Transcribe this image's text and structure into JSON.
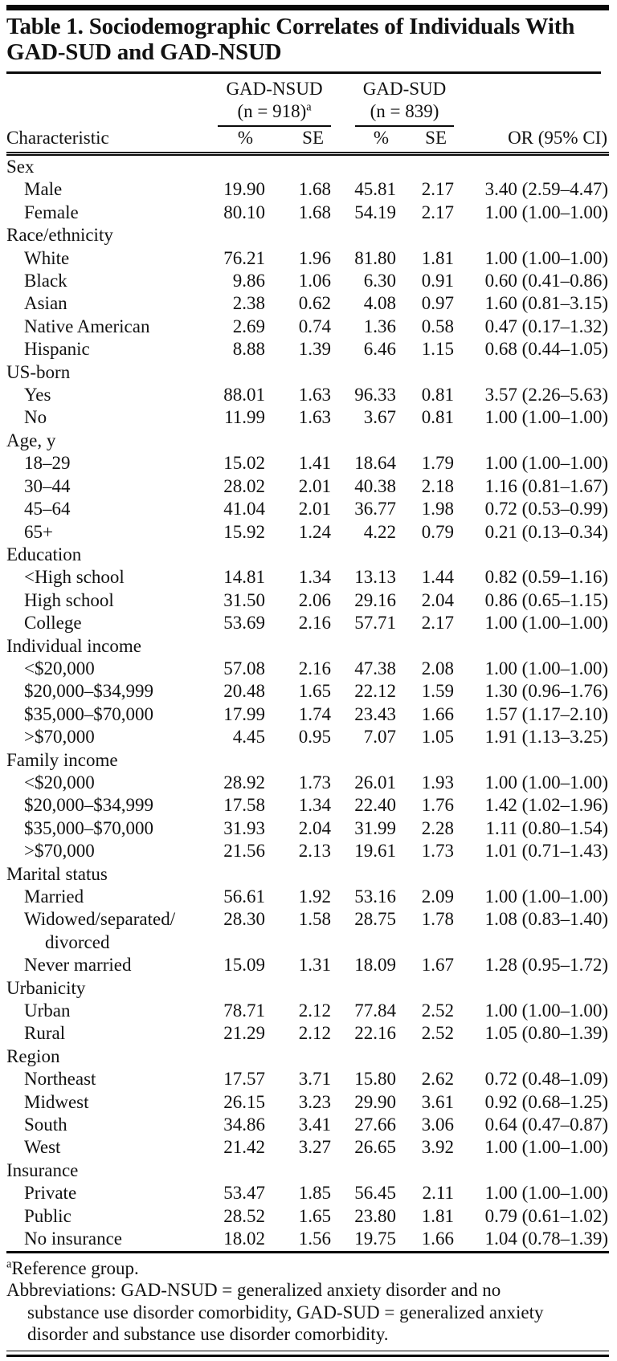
{
  "table": {
    "title": "Table 1. Sociodemographic Correlates of Individuals With GAD-SUD and GAD-NSUD",
    "col_groups": [
      {
        "label": "GAD-NSUD",
        "n": "(n = 918)",
        "sup": "a"
      },
      {
        "label": "GAD-SUD",
        "n": "(n = 839)",
        "sup": ""
      }
    ],
    "columns": {
      "characteristic": "Characteristic",
      "pct1": "%",
      "se1": "SE",
      "pct2": "%",
      "se2": "SE",
      "or": "OR (95% CI)"
    },
    "sections": [
      {
        "header": "Sex",
        "rows": [
          {
            "label": "Male",
            "values": [
              "19.90",
              "1.68",
              "45.81",
              "2.17",
              "3.40 (2.59–4.47)"
            ]
          },
          {
            "label": "Female",
            "values": [
              "80.10",
              "1.68",
              "54.19",
              "2.17",
              "1.00 (1.00–1.00)"
            ]
          }
        ]
      },
      {
        "header": "Race/ethnicity",
        "rows": [
          {
            "label": "White",
            "values": [
              "76.21",
              "1.96",
              "81.80",
              "1.81",
              "1.00 (1.00–1.00)"
            ]
          },
          {
            "label": "Black",
            "values": [
              "9.86",
              "1.06",
              "6.30",
              "0.91",
              "0.60 (0.41–0.86)"
            ]
          },
          {
            "label": "Asian",
            "values": [
              "2.38",
              "0.62",
              "4.08",
              "0.97",
              "1.60 (0.81–3.15)"
            ]
          },
          {
            "label": "Native American",
            "values": [
              "2.69",
              "0.74",
              "1.36",
              "0.58",
              "0.47 (0.17–1.32)"
            ]
          },
          {
            "label": "Hispanic",
            "values": [
              "8.88",
              "1.39",
              "6.46",
              "1.15",
              "0.68 (0.44–1.05)"
            ]
          }
        ]
      },
      {
        "header": "US-born",
        "rows": [
          {
            "label": "Yes",
            "values": [
              "88.01",
              "1.63",
              "96.33",
              "0.81",
              "3.57 (2.26–5.63)"
            ]
          },
          {
            "label": "No",
            "values": [
              "11.99",
              "1.63",
              "3.67",
              "0.81",
              "1.00 (1.00–1.00)"
            ]
          }
        ]
      },
      {
        "header": "Age, y",
        "rows": [
          {
            "label": "18–29",
            "values": [
              "15.02",
              "1.41",
              "18.64",
              "1.79",
              "1.00 (1.00–1.00)"
            ]
          },
          {
            "label": "30–44",
            "values": [
              "28.02",
              "2.01",
              "40.38",
              "2.18",
              "1.16 (0.81–1.67)"
            ]
          },
          {
            "label": "45–64",
            "values": [
              "41.04",
              "2.01",
              "36.77",
              "1.98",
              "0.72 (0.53–0.99)"
            ]
          },
          {
            "label": "65+",
            "values": [
              "15.92",
              "1.24",
              "4.22",
              "0.79",
              "0.21 (0.13–0.34)"
            ]
          }
        ]
      },
      {
        "header": "Education",
        "rows": [
          {
            "label": "<High school",
            "values": [
              "14.81",
              "1.34",
              "13.13",
              "1.44",
              "0.82 (0.59–1.16)"
            ]
          },
          {
            "label": "High school",
            "values": [
              "31.50",
              "2.06",
              "29.16",
              "2.04",
              "0.86 (0.65–1.15)"
            ]
          },
          {
            "label": "College",
            "values": [
              "53.69",
              "2.16",
              "57.71",
              "2.17",
              "1.00 (1.00–1.00)"
            ]
          }
        ]
      },
      {
        "header": "Individual income",
        "rows": [
          {
            "label": "<$20,000",
            "values": [
              "57.08",
              "2.16",
              "47.38",
              "2.08",
              "1.00 (1.00–1.00)"
            ]
          },
          {
            "label": "$20,000–$34,999",
            "values": [
              "20.48",
              "1.65",
              "22.12",
              "1.59",
              "1.30 (0.96–1.76)"
            ]
          },
          {
            "label": "$35,000–$70,000",
            "values": [
              "17.99",
              "1.74",
              "23.43",
              "1.66",
              "1.57 (1.17–2.10)"
            ]
          },
          {
            "label": ">$70,000",
            "values": [
              "4.45",
              "0.95",
              "7.07",
              "1.05",
              "1.91 (1.13–3.25)"
            ]
          }
        ]
      },
      {
        "header": "Family income",
        "rows": [
          {
            "label": "<$20,000",
            "values": [
              "28.92",
              "1.73",
              "26.01",
              "1.93",
              "1.00 (1.00–1.00)"
            ]
          },
          {
            "label": "$20,000–$34,999",
            "values": [
              "17.58",
              "1.34",
              "22.40",
              "1.76",
              "1.42 (1.02–1.96)"
            ]
          },
          {
            "label": "$35,000–$70,000",
            "values": [
              "31.93",
              "2.04",
              "31.99",
              "2.28",
              "1.11 (0.80–1.54)"
            ]
          },
          {
            "label": ">$70,000",
            "values": [
              "21.56",
              "2.13",
              "19.61",
              "1.73",
              "1.01 (0.71–1.43)"
            ]
          }
        ]
      },
      {
        "header": "Marital status",
        "rows": [
          {
            "label": "Married",
            "values": [
              "56.61",
              "1.92",
              "53.16",
              "2.09",
              "1.00 (1.00–1.00)"
            ]
          },
          {
            "label": "Widowed/separated/",
            "label2": "divorced",
            "values": [
              "28.30",
              "1.58",
              "28.75",
              "1.78",
              "1.08 (0.83–1.40)"
            ]
          },
          {
            "label": "Never married",
            "values": [
              "15.09",
              "1.31",
              "18.09",
              "1.67",
              "1.28 (0.95–1.72)"
            ]
          }
        ]
      },
      {
        "header": "Urbanicity",
        "rows": [
          {
            "label": "Urban",
            "values": [
              "78.71",
              "2.12",
              "77.84",
              "2.52",
              "1.00 (1.00–1.00)"
            ]
          },
          {
            "label": "Rural",
            "values": [
              "21.29",
              "2.12",
              "22.16",
              "2.52",
              "1.05 (0.80–1.39)"
            ]
          }
        ]
      },
      {
        "header": "Region",
        "rows": [
          {
            "label": "Northeast",
            "values": [
              "17.57",
              "3.71",
              "15.80",
              "2.62",
              "0.72 (0.48–1.09)"
            ]
          },
          {
            "label": "Midwest",
            "values": [
              "26.15",
              "3.23",
              "29.90",
              "3.61",
              "0.92 (0.68–1.25)"
            ]
          },
          {
            "label": "South",
            "values": [
              "34.86",
              "3.41",
              "27.66",
              "3.06",
              "0.64 (0.47–0.87)"
            ]
          },
          {
            "label": "West",
            "values": [
              "21.42",
              "3.27",
              "26.65",
              "3.92",
              "1.00 (1.00–1.00)"
            ]
          }
        ]
      },
      {
        "header": "Insurance",
        "rows": [
          {
            "label": "Private",
            "values": [
              "53.47",
              "1.85",
              "56.45",
              "2.11",
              "1.00 (1.00–1.00)"
            ]
          },
          {
            "label": "Public",
            "values": [
              "28.52",
              "1.65",
              "23.80",
              "1.81",
              "0.79 (0.61–1.02)"
            ]
          },
          {
            "label": "No insurance",
            "values": [
              "18.02",
              "1.56",
              "19.75",
              "1.66",
              "1.04 (0.78–1.39)"
            ]
          }
        ]
      }
    ],
    "footnotes": [
      {
        "sup": "a",
        "lines": [
          "Reference group."
        ]
      },
      {
        "sup": "",
        "lines": [
          "Abbreviations: GAD-NSUD = generalized anxiety disorder and no",
          "substance use disorder comorbidity, GAD-SUD = generalized anxiety",
          "disorder and substance use disorder comorbidity."
        ]
      }
    ]
  }
}
